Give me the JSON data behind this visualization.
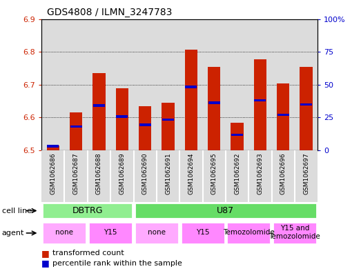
{
  "title": "GDS4808 / ILMN_3247783",
  "samples": [
    "GSM1062686",
    "GSM1062687",
    "GSM1062688",
    "GSM1062689",
    "GSM1062690",
    "GSM1062691",
    "GSM1062694",
    "GSM1062695",
    "GSM1062692",
    "GSM1062693",
    "GSM1062696",
    "GSM1062697"
  ],
  "red_values": [
    6.515,
    6.615,
    6.735,
    6.69,
    6.635,
    6.645,
    6.807,
    6.755,
    6.585,
    6.778,
    6.703,
    6.755
  ],
  "blue_values": [
    6.513,
    6.572,
    6.637,
    6.603,
    6.578,
    6.593,
    6.693,
    6.645,
    6.548,
    6.653,
    6.608,
    6.64
  ],
  "bar_base": 6.5,
  "ylim_left": [
    6.5,
    6.9
  ],
  "ylim_right": [
    0,
    100
  ],
  "yticks_left": [
    6.5,
    6.6,
    6.7,
    6.8,
    6.9
  ],
  "yticks_right": [
    0,
    25,
    50,
    75,
    100
  ],
  "ytick_labels_right": [
    "0",
    "25",
    "50",
    "75",
    "100%"
  ],
  "cell_line_groups": [
    {
      "label": "DBTRG",
      "start": 0,
      "end": 4,
      "color": "#90EE90"
    },
    {
      "label": "U87",
      "start": 4,
      "end": 12,
      "color": "#66DD66"
    }
  ],
  "agent_groups": [
    {
      "label": "none",
      "start": 0,
      "end": 2,
      "color": "#FFAAFF"
    },
    {
      "label": "Y15",
      "start": 2,
      "end": 4,
      "color": "#FF88FF"
    },
    {
      "label": "none",
      "start": 4,
      "end": 6,
      "color": "#FFAAFF"
    },
    {
      "label": "Y15",
      "start": 6,
      "end": 8,
      "color": "#FF88FF"
    },
    {
      "label": "Temozolomide",
      "start": 8,
      "end": 10,
      "color": "#FF88FF"
    },
    {
      "label": "Y15 and\nTemozolomide",
      "start": 10,
      "end": 12,
      "color": "#FF88FF"
    }
  ],
  "bar_color": "#CC2200",
  "blue_color": "#0000CC",
  "col_bg_color": "#DCDCDC",
  "bar_width": 0.55,
  "grid_color": "black",
  "left_tick_color": "#CC2200",
  "right_tick_color": "#0000CC"
}
